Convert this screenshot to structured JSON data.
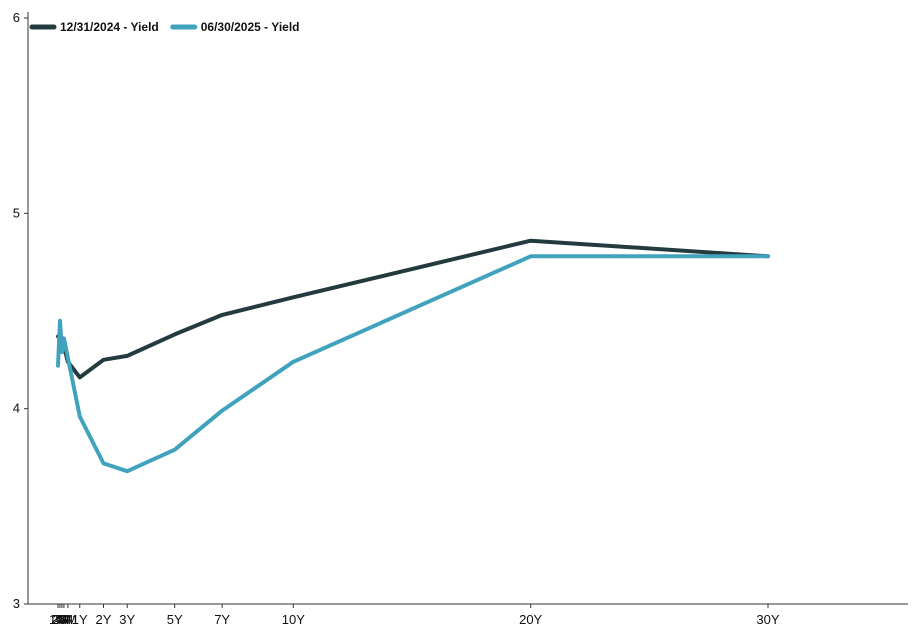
{
  "chart_data": {
    "type": "line",
    "title": "",
    "xlabel": "",
    "ylabel": "",
    "categories": [
      "1M",
      "2M",
      "3M",
      "4M",
      "6M",
      "1Y",
      "2Y",
      "3Y",
      "5Y",
      "7Y",
      "10Y",
      "20Y",
      "30Y"
    ],
    "x_months": [
      1,
      2,
      3,
      4,
      6,
      12,
      24,
      36,
      60,
      84,
      120,
      240,
      360
    ],
    "ylim": [
      3,
      6
    ],
    "yticks": [
      3,
      4,
      5,
      6
    ],
    "grid": false,
    "legend_position": "top-left",
    "series": [
      {
        "name": "12/31/2024 - Yield",
        "color": "#233b3f",
        "values": [
          4.37,
          4.36,
          4.31,
          4.32,
          4.24,
          4.16,
          4.25,
          4.27,
          4.38,
          4.48,
          4.57,
          4.86,
          4.78
        ]
      },
      {
        "name": "06/30/2025 - Yield",
        "color": "#41a2be",
        "values": [
          4.22,
          4.45,
          4.29,
          4.36,
          4.26,
          3.96,
          3.72,
          3.68,
          3.79,
          3.99,
          4.24,
          4.78,
          4.78
        ]
      }
    ]
  }
}
